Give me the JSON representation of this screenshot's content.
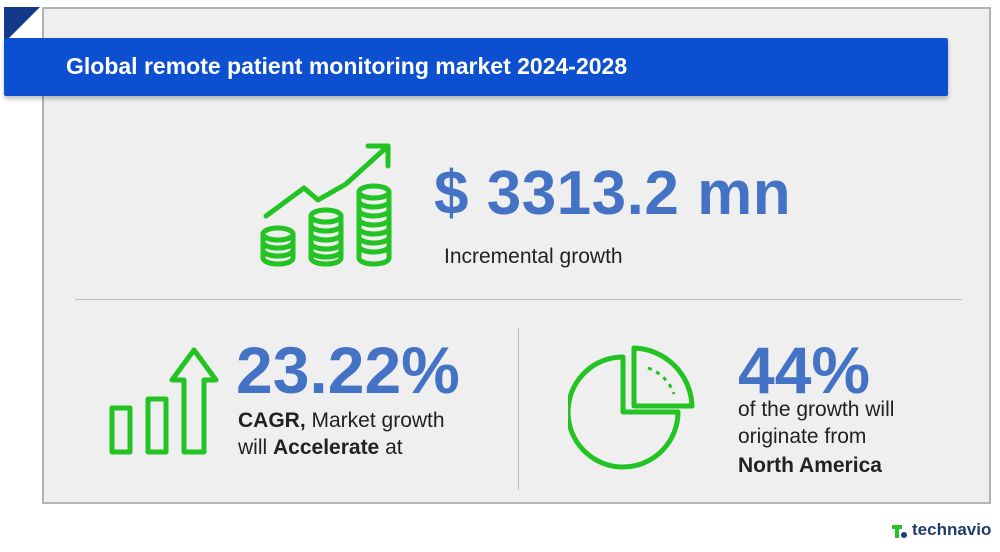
{
  "header": {
    "title": "Global remote patient monitoring market 2024-2028"
  },
  "incremental": {
    "value": "$ 3313.2 mn",
    "label": "Incremental growth"
  },
  "cagr": {
    "value": "23.22%",
    "line1_bold": "CAGR,",
    "line1_rest": " Market growth",
    "line2_prefix": "will ",
    "line2_bold": "Accelerate",
    "line2_suffix": " at"
  },
  "region": {
    "value": "44%",
    "line1": "of the growth will",
    "line2": "originate from",
    "line3": "North America"
  },
  "brand": {
    "name": "technavio"
  },
  "colors": {
    "accent": "#4472c4",
    "banner": "#0c4fd0",
    "icon_green": "#22c322",
    "brand": "#1f3d6b"
  },
  "icons": [
    "growth-coins-icon",
    "bar-arrow-up-icon",
    "pie-chart-icon",
    "technavio-logo-icon"
  ]
}
